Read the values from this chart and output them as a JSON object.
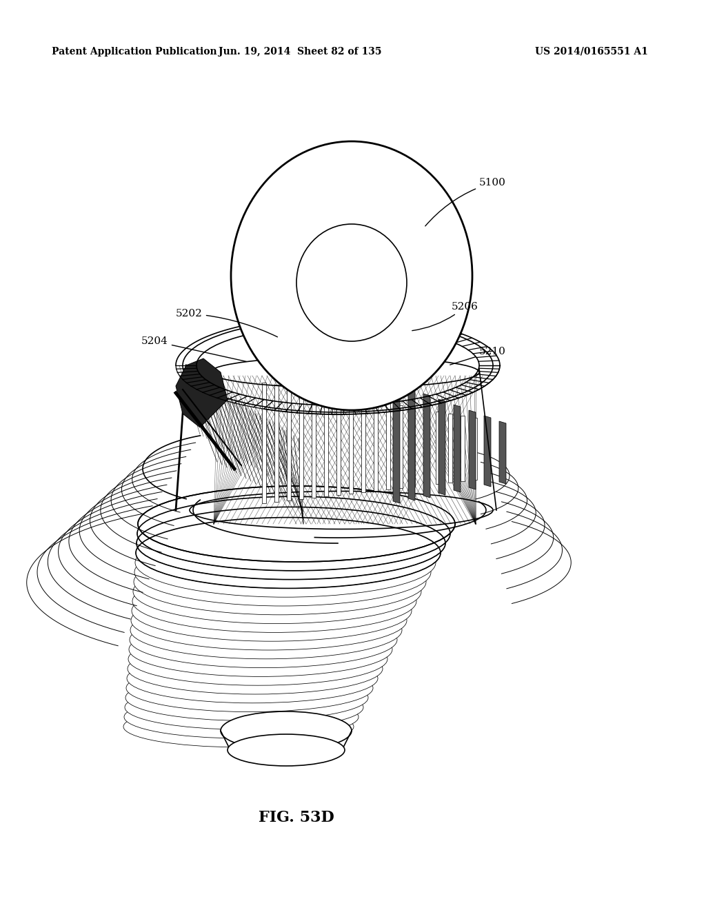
{
  "background_color": "#ffffff",
  "header_left": "Patent Application Publication",
  "header_center": "Jun. 19, 2014  Sheet 82 of 135",
  "header_right": "US 2014/0165551 A1",
  "figure_label": "FIG. 53D",
  "header_fontsize": 10,
  "fig_label_fontsize": 16,
  "label_fontsize": 11
}
